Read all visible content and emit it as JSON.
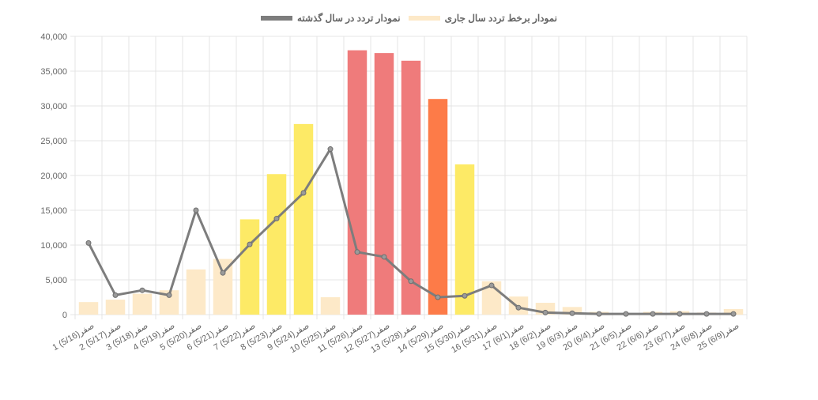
{
  "chart_data": {
    "type": "bar",
    "title": "",
    "xlabel": "",
    "ylabel": "",
    "ylim": [
      0,
      40000
    ],
    "yticks": [
      0,
      5000,
      10000,
      15000,
      20000,
      25000,
      30000,
      35000,
      40000
    ],
    "ytick_labels": [
      "0",
      "5,000",
      "10,000",
      "15,000",
      "20,000",
      "25,000",
      "30,000",
      "35,000",
      "40,000"
    ],
    "grid": true,
    "legend_position": "top",
    "categories": [
      "1 صفر(5/16)",
      "2 صفر(5/17)",
      "3 صفر(5/18)",
      "4 صفر(5/19)",
      "5 صفر(5/20)",
      "6 صفر(5/21)",
      "7 صفر(5/22)",
      "8 صفر(5/23)",
      "9 صفر(5/24)",
      "10 صفر(5/25)",
      "11 صفر(5/26)",
      "12 صفر(5/27)",
      "13 صفر(5/28)",
      "14 صفر(5/29)",
      "15 صفر(5/30)",
      "16 صفر(5/31)",
      "17 صفر(6/1)",
      "18 صفر(6/2)",
      "19 صفر(6/3)",
      "20 صفر(6/4)",
      "21 صفر(6/5)",
      "22 صفر(6/6)",
      "23 صفر(6/7)",
      "24 صفر(6/8)",
      "25 صفر(6/9)"
    ],
    "series": [
      {
        "name": "نمودار برخط تردد سال جاری",
        "type": "bar",
        "legend_color": "#fde9c8",
        "values": [
          1800,
          2150,
          3000,
          3500,
          6500,
          8000,
          13700,
          20200,
          27400,
          2500,
          38000,
          37600,
          36500,
          31000,
          21600,
          4800,
          2600,
          1700,
          1100,
          400,
          200,
          400,
          500,
          300,
          800
        ],
        "colors": [
          "#fde9c8",
          "#fde9c8",
          "#fde9c8",
          "#fde9c8",
          "#fde9c8",
          "#fde9c8",
          "#fdea66",
          "#fdea66",
          "#fdea66",
          "#fde9c8",
          "#ef7b7b",
          "#ef7b7b",
          "#ef7b7b",
          "#fd7b48",
          "#fdea66",
          "#fde9c8",
          "#fde9c8",
          "#fde9c8",
          "#fde9c8",
          "#fde9c8",
          "#fde9c8",
          "#fde9c8",
          "#fde9c8",
          "#fde9c8",
          "#fde9c8"
        ]
      },
      {
        "name": "نمودار تردد در سال گذشته",
        "type": "line",
        "color": "#7d7d7d",
        "values": [
          10300,
          2800,
          3500,
          2800,
          15000,
          6000,
          10100,
          13800,
          17500,
          23800,
          9000,
          8300,
          4800,
          2500,
          2700,
          4200,
          1000,
          300,
          200,
          100,
          100,
          100,
          100,
          100,
          100
        ]
      }
    ]
  }
}
